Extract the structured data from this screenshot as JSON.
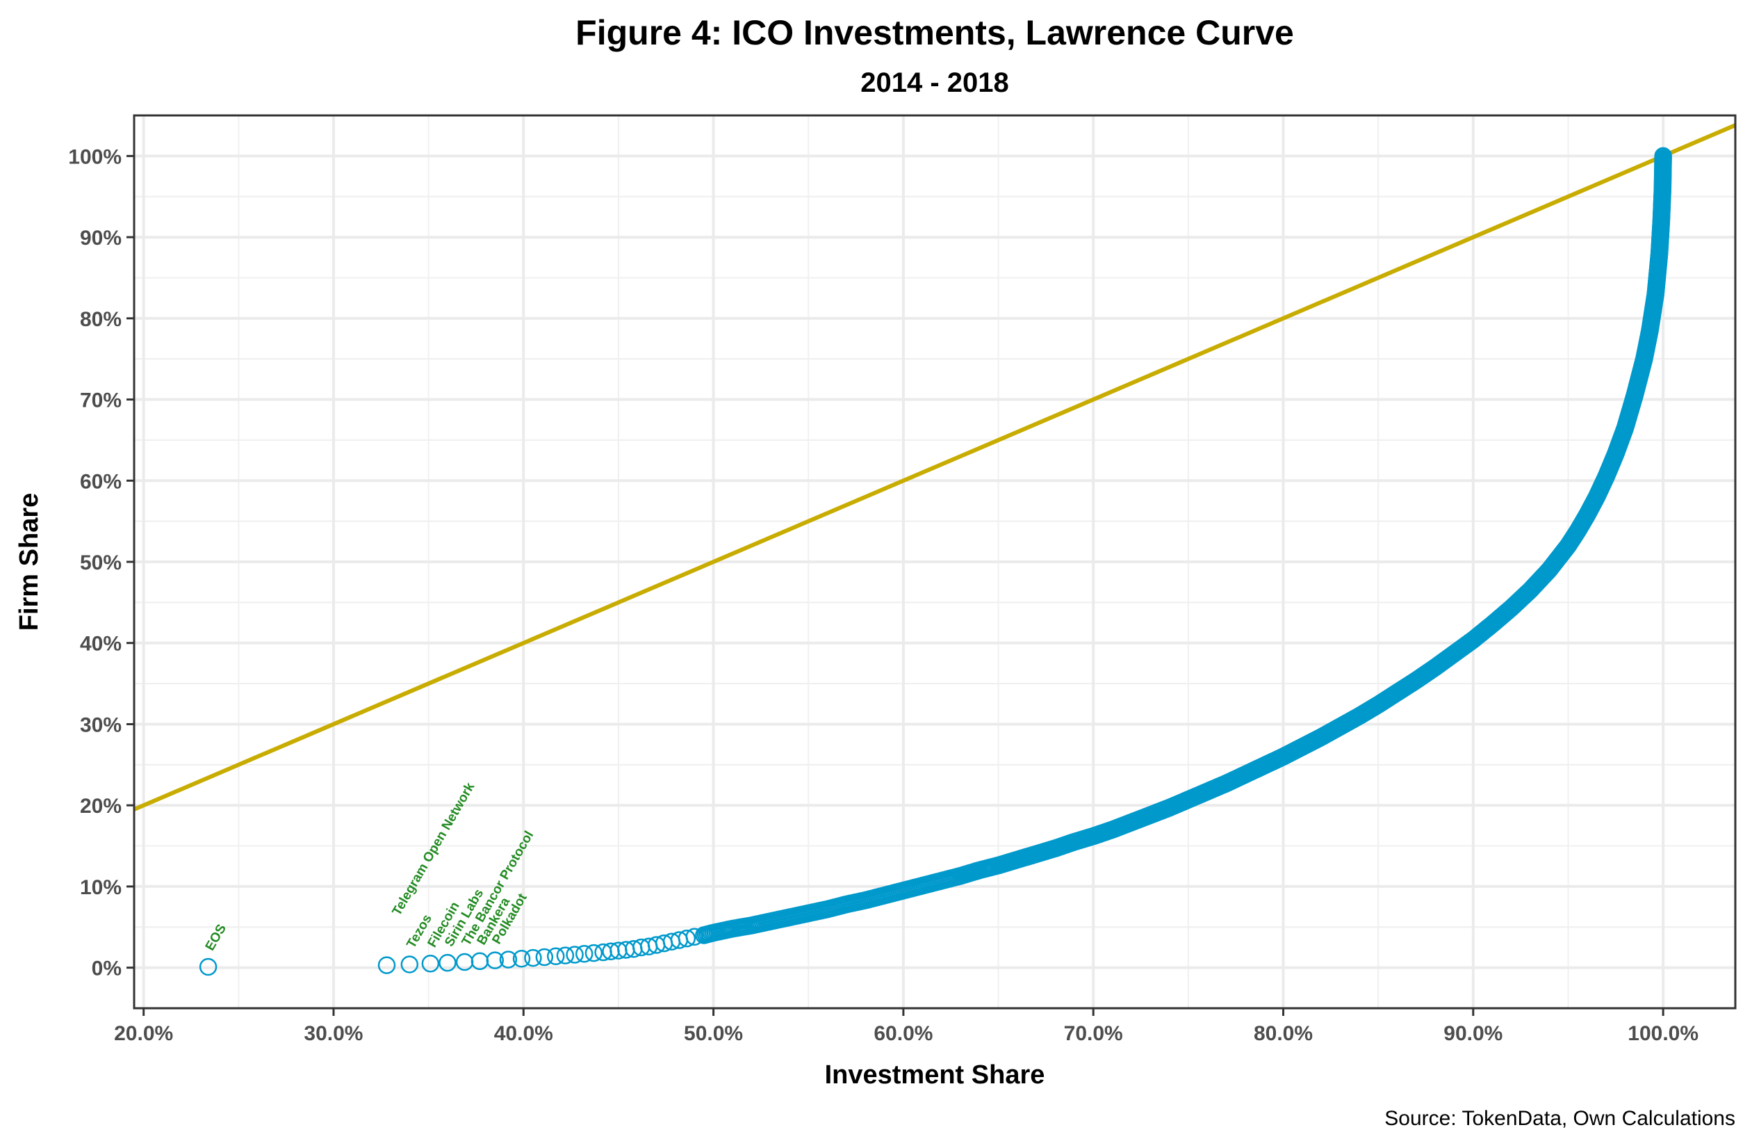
{
  "chart_data": {
    "type": "scatter",
    "title": "Figure 4: ICO Investments, Lawrence Curve",
    "subtitle": "2014 - 2018",
    "xlabel": "Investment Share",
    "ylabel": "Firm Share",
    "caption": "Source: TokenData, Own Calculations",
    "xlim": [
      19.5,
      103.8
    ],
    "ylim": [
      -5,
      105
    ],
    "x_ticks": [
      "20.0%",
      "30.0%",
      "40.0%",
      "50.0%",
      "60.0%",
      "70.0%",
      "80.0%",
      "90.0%",
      "100.0%"
    ],
    "x_tick_values": [
      20,
      30,
      40,
      50,
      60,
      70,
      80,
      90,
      100
    ],
    "y_ticks": [
      "0%",
      "10%",
      "20%",
      "30%",
      "40%",
      "50%",
      "60%",
      "70%",
      "80%",
      "90%",
      "100%"
    ],
    "y_tick_values": [
      0,
      10,
      20,
      30,
      40,
      50,
      60,
      70,
      80,
      90,
      100
    ],
    "grid": true,
    "colors": {
      "points": "#0099CC",
      "reference_line": "#C8AC00",
      "labels": "#228B22"
    },
    "reference_line": {
      "type": "y=x"
    },
    "series": [
      {
        "x": [
          23.4,
          32.8,
          34.0,
          35.1,
          36.0,
          36.9,
          37.7,
          38.5,
          39.2,
          39.9,
          40.5,
          41.1,
          41.7,
          42.2,
          42.7,
          43.2,
          43.7,
          44.2,
          44.6,
          45.0,
          45.4,
          45.8,
          46.2,
          46.6,
          47.0,
          47.4,
          47.8,
          48.2,
          48.6,
          49.0,
          49.5,
          50,
          51,
          52,
          53,
          54,
          55,
          56,
          57,
          58,
          59,
          60,
          61,
          62,
          63,
          64,
          65,
          66,
          67,
          68,
          69,
          70,
          71,
          72,
          73,
          74,
          75,
          76,
          77,
          78,
          79,
          80,
          81,
          82,
          83,
          84,
          85,
          86,
          87,
          88,
          89,
          90,
          91,
          92,
          93,
          94,
          95,
          95.5,
          96,
          96.5,
          97,
          97.5,
          98,
          98.5,
          99,
          99.3,
          99.6,
          99.8,
          99.9,
          99.97,
          100
        ],
        "y": [
          0.1,
          0.3,
          0.4,
          0.5,
          0.6,
          0.7,
          0.8,
          0.9,
          1.0,
          1.1,
          1.2,
          1.3,
          1.4,
          1.5,
          1.6,
          1.7,
          1.8,
          1.9,
          2.0,
          2.1,
          2.2,
          2.3,
          2.5,
          2.6,
          2.8,
          3.0,
          3.2,
          3.4,
          3.6,
          3.8,
          4.0,
          4.3,
          4.8,
          5.2,
          5.7,
          6.2,
          6.7,
          7.2,
          7.8,
          8.3,
          8.9,
          9.5,
          10.1,
          10.7,
          11.3,
          12.0,
          12.6,
          13.3,
          14.0,
          14.7,
          15.5,
          16.2,
          17.0,
          17.9,
          18.8,
          19.7,
          20.7,
          21.7,
          22.7,
          23.8,
          24.9,
          26.0,
          27.2,
          28.4,
          29.7,
          31.0,
          32.4,
          33.9,
          35.4,
          37.0,
          38.7,
          40.4,
          42.3,
          44.3,
          46.5,
          49.0,
          52.0,
          53.8,
          55.8,
          58.0,
          60.5,
          63.3,
          66.5,
          70.5,
          75.0,
          78.5,
          83.0,
          88.0,
          92.0,
          96.0,
          100
        ]
      }
    ],
    "annotations": [
      {
        "text": "EOS",
        "point_index": 0
      },
      {
        "text": "Telegram Open Network",
        "point_index": 1
      },
      {
        "text": "Tezos",
        "point_index": 2
      },
      {
        "text": "Filecoin",
        "point_index": 3
      },
      {
        "text": "Sirin Labs",
        "point_index": 4
      },
      {
        "text": "The Bancor Protocol",
        "point_index": 5
      },
      {
        "text": "Bankera",
        "point_index": 6
      },
      {
        "text": "Polkadot",
        "point_index": 7
      }
    ]
  }
}
